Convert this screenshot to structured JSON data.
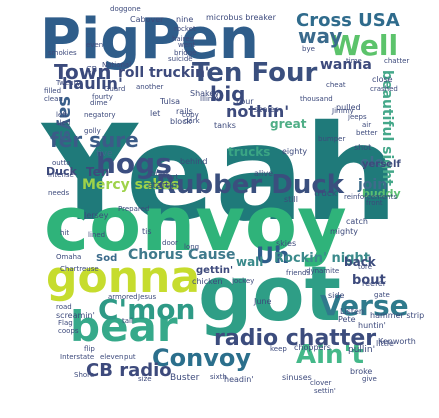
{
  "title": "",
  "words": [
    {
      "text": "Yeah",
      "color": "#1f7a7a",
      "vertical": false
    },
    {
      "text": "convoy",
      "color": "#2fb37a",
      "vertical": false
    },
    {
      "text": "got",
      "color": "#2e9e86",
      "vertical": false
    },
    {
      "text": "Pig",
      "color": "#2f5d8a",
      "vertical": false
    },
    {
      "text": "Pen",
      "color": "#2f5d8a",
      "vertical": false
    },
    {
      "text": "gonna",
      "color": "#c6dc2e",
      "vertical": false
    },
    {
      "text": "bear",
      "color": "#36a98a",
      "vertical": false
    },
    {
      "text": "Rubber Duck",
      "color": "#3a4f7e",
      "vertical": false
    },
    {
      "text": "Ten Four",
      "color": "#3a4f7e",
      "vertical": false
    },
    {
      "text": "Convoy",
      "color": "#2b6f8c",
      "vertical": false
    },
    {
      "text": "Ain't",
      "color": "#44b889",
      "vertical": false
    },
    {
      "text": "C'mon",
      "color": "#2e9a86",
      "vertical": false
    },
    {
      "text": "Verse",
      "color": "#2f7a8c",
      "vertical": false
    },
    {
      "text": "radio chatter",
      "color": "#3c4c7d",
      "vertical": false
    },
    {
      "text": "CB radio",
      "color": "#3d4a7c",
      "vertical": false
    },
    {
      "text": "Well",
      "color": "#5cc36b",
      "vertical": false
    },
    {
      "text": "hogs",
      "color": "#3b4e80",
      "vertical": false
    },
    {
      "text": "Cross USA",
      "color": "#2f6b8c",
      "vertical": false
    },
    {
      "text": "Town",
      "color": "#3b4a7c",
      "vertical": false
    },
    {
      "text": "fer sure",
      "color": "#3b5b87",
      "vertical": false
    },
    {
      "text": "says",
      "color": "#3a5f89",
      "vertical": true
    },
    {
      "text": "Uh",
      "color": "#2f5d8a",
      "vertical": false
    },
    {
      "text": "big",
      "color": "#3a4a7c",
      "vertical": false
    },
    {
      "text": "way",
      "color": "#3a6a8c",
      "vertical": false
    },
    {
      "text": "nothin'",
      "color": "#3d4a7c",
      "vertical": false
    },
    {
      "text": "roll truckin'",
      "color": "#3d4a7c",
      "vertical": false
    },
    {
      "text": "wanna",
      "color": "#3d4a7c",
      "vertical": false
    },
    {
      "text": "beautiful sight",
      "color": "#45a88a",
      "vertical": true
    },
    {
      "text": "Chorus Cause",
      "color": "#3f7a8c",
      "vertical": false
    },
    {
      "text": "Rockin' night",
      "color": "#3b8a8b",
      "vertical": false
    },
    {
      "text": "Mercy sakes",
      "color": "#9ed24a",
      "vertical": false
    },
    {
      "text": "trucks",
      "color": "#3aa584",
      "vertical": false
    },
    {
      "text": "join",
      "color": "#3d6c8b",
      "vertical": false
    },
    {
      "text": "wall",
      "color": "#3a8a8b",
      "vertical": false
    },
    {
      "text": "back",
      "color": "#3b4c7d",
      "vertical": false
    },
    {
      "text": "haulin'",
      "color": "#3b4a7c",
      "vertical": false
    },
    {
      "text": "Ten",
      "color": "#3d4a7c",
      "vertical": false
    },
    {
      "text": "five",
      "color": "#3d6a8b",
      "vertical": false
    },
    {
      "text": "gettin'",
      "color": "#3f4b7d",
      "vertical": false
    },
    {
      "text": "Sod",
      "color": "#3a6a8b",
      "vertical": false
    },
    {
      "text": "great",
      "color": "#4fae86",
      "vertical": false
    },
    {
      "text": "ole",
      "color": "#3d6c8b",
      "vertical": false
    },
    {
      "text": "bout",
      "color": "#3d4a7c",
      "vertical": false
    },
    {
      "text": "Duck",
      "color": "#3d4a7c",
      "vertical": false
    },
    {
      "text": "buddy",
      "color": "#5bbf72",
      "vertical": false
    },
    {
      "text": "yerself",
      "color": "#3d4a7c",
      "vertical": false
    },
    {
      "text": "Jersey",
      "color": "#3d4a7c",
      "vertical": false
    },
    {
      "text": "Shakey",
      "color": "#3d4a7c",
      "vertical": false
    },
    {
      "text": "behind",
      "color": "#3d4a7c",
      "vertical": false
    },
    {
      "text": "alive",
      "color": "#3d4a7c",
      "vertical": false
    },
    {
      "text": "still",
      "color": "#3d4a7c",
      "vertical": false
    },
    {
      "text": "bugs",
      "color": "#3d4a7c",
      "vertical": false
    },
    {
      "text": "smart",
      "color": "#3d4a7c",
      "vertical": false
    },
    {
      "text": "startin'",
      "color": "#3d4a7c",
      "vertical": false
    },
    {
      "text": "tanks",
      "color": "#3d4a7c",
      "vertical": false
    },
    {
      "text": "eighty",
      "color": "#3d4a7c",
      "vertical": false
    },
    {
      "text": "rails",
      "color": "#3d4a7c",
      "vertical": false
    },
    {
      "text": "let",
      "color": "#3d4a7c",
      "vertical": false
    },
    {
      "text": "block",
      "color": "#3d4a7c",
      "vertical": false
    },
    {
      "text": "pulled",
      "color": "#3d4a7c",
      "vertical": false
    },
    {
      "text": "Four",
      "color": "#3d4a7c",
      "vertical": false
    },
    {
      "text": "scales",
      "color": "#3d4a7c",
      "vertical": false
    },
    {
      "text": "Illinois",
      "color": "#3d4a7c",
      "vertical": false
    },
    {
      "text": "Tulsa",
      "color": "#3d4a7c",
      "vertical": false
    },
    {
      "text": "suicide",
      "color": "#3d4a7c",
      "vertical": false
    },
    {
      "text": "bridge",
      "color": "#3d4a7c",
      "vertical": false
    },
    {
      "text": "rocket",
      "color": "#3d4a7c",
      "vertical": false
    },
    {
      "text": "Cabover",
      "color": "#3d4a7c",
      "vertical": false
    },
    {
      "text": "nine",
      "color": "#3d4a7c",
      "vertical": false
    },
    {
      "text": "doggone",
      "color": "#3d4a7c",
      "vertical": false
    },
    {
      "text": "microbus breaker",
      "color": "#3d4a7c",
      "vertical": false
    },
    {
      "text": "haired",
      "color": "#3d4a7c",
      "vertical": false
    },
    {
      "text": "went",
      "color": "#3d4a7c",
      "vertical": false
    },
    {
      "text": "Kenworth",
      "color": "#3d4a7c",
      "vertical": false
    },
    {
      "text": "truck",
      "color": "#3d4a7c",
      "vertical": false
    },
    {
      "text": "catch",
      "color": "#3d4a7c",
      "vertical": false
    },
    {
      "text": "skies",
      "color": "#3d4a7c",
      "vertical": false
    },
    {
      "text": "friends",
      "color": "#3d4a7c",
      "vertical": false
    },
    {
      "text": "dynamite",
      "color": "#3d4a7c",
      "vertical": false
    },
    {
      "text": "reefer",
      "color": "#3d4a7c",
      "vertical": false
    },
    {
      "text": "side",
      "color": "#3d4a7c",
      "vertical": false
    },
    {
      "text": "Listen",
      "color": "#3d4a7c",
      "vertical": false
    },
    {
      "text": "June",
      "color": "#3d4a7c",
      "vertical": false
    },
    {
      "text": "hammer strip",
      "color": "#3d4a7c",
      "vertical": false
    },
    {
      "text": "Pete",
      "color": "#3d4a7c",
      "vertical": false
    },
    {
      "text": "huntin'",
      "color": "#3d4a7c",
      "vertical": false
    },
    {
      "text": "little",
      "color": "#3d4a7c",
      "vertical": false
    },
    {
      "text": "pullin'",
      "color": "#3d4a7c",
      "vertical": false
    },
    {
      "text": "choppers",
      "color": "#3d4a7c",
      "vertical": false
    },
    {
      "text": "keep",
      "color": "#3d4a7c",
      "vertical": false
    },
    {
      "text": "broke",
      "color": "#3d4a7c",
      "vertical": false
    },
    {
      "text": "sinuses",
      "color": "#3d4a7c",
      "vertical": false
    },
    {
      "text": "headin'",
      "color": "#3d4a7c",
      "vertical": false
    },
    {
      "text": "sixth",
      "color": "#3d4a7c",
      "vertical": false
    },
    {
      "text": "Buster",
      "color": "#3d4a7c",
      "vertical": false
    },
    {
      "text": "size",
      "color": "#3d4a7c",
      "vertical": false
    },
    {
      "text": "eleven",
      "color": "#3d4a7c",
      "vertical": false
    },
    {
      "text": "put",
      "color": "#3d4a7c",
      "vertical": false
    },
    {
      "text": "flip",
      "color": "#3d4a7c",
      "vertical": false
    },
    {
      "text": "Shore",
      "color": "#3d4a7c",
      "vertical": false
    },
    {
      "text": "Interstate",
      "color": "#3d4a7c",
      "vertical": false
    },
    {
      "text": "Flag",
      "color": "#3d4a7c",
      "vertical": false
    },
    {
      "text": "coops",
      "color": "#3d4a7c",
      "vertical": false
    },
    {
      "text": "screamin'",
      "color": "#3d4a7c",
      "vertical": false
    },
    {
      "text": "road",
      "color": "#3d4a7c",
      "vertical": false
    },
    {
      "text": "Omaha",
      "color": "#3d4a7c",
      "vertical": false
    },
    {
      "text": "Chartreuse",
      "color": "#3d4a7c",
      "vertical": false
    },
    {
      "text": "armored",
      "color": "#3d4a7c",
      "vertical": false
    },
    {
      "text": "Jesus",
      "color": "#3d4a7c",
      "vertical": false
    },
    {
      "text": "chicken",
      "color": "#3d4a7c",
      "vertical": false
    },
    {
      "text": "jockey",
      "color": "#3d4a7c",
      "vertical": false
    },
    {
      "text": "long",
      "color": "#3d4a7c",
      "vertical": false
    },
    {
      "text": "door",
      "color": "#3d4a7c",
      "vertical": false
    },
    {
      "text": "lined",
      "color": "#3d4a7c",
      "vertical": false
    },
    {
      "text": "tis",
      "color": "#3d4a7c",
      "vertical": false
    },
    {
      "text": "needs",
      "color": "#3d4a7c",
      "vertical": false
    },
    {
      "text": "intense",
      "color": "#3d4a7c",
      "vertical": false
    },
    {
      "text": "outta",
      "color": "#3d4a7c",
      "vertical": false
    },
    {
      "text": "left",
      "color": "#3d4a7c",
      "vertical": false
    },
    {
      "text": "sled",
      "color": "#3d4a7c",
      "vertical": false
    },
    {
      "text": "golly",
      "color": "#3d4a7c",
      "vertical": false
    },
    {
      "text": "negatory",
      "color": "#3d4a7c",
      "vertical": false
    },
    {
      "text": "Twenty",
      "color": "#3d4a7c",
      "vertical": false
    },
    {
      "text": "filled",
      "color": "#3d4a7c",
      "vertical": false
    },
    {
      "text": "clean",
      "color": "#3d4a7c",
      "vertical": false
    },
    {
      "text": "dime",
      "color": "#3d4a7c",
      "vertical": false
    },
    {
      "text": "fourty",
      "color": "#3d4a7c",
      "vertical": false
    },
    {
      "text": "Guard",
      "color": "#3d4a7c",
      "vertical": false
    },
    {
      "text": "National",
      "color": "#3d4a7c",
      "vertical": false
    },
    {
      "text": "another",
      "color": "#3d4a7c",
      "vertical": false
    },
    {
      "text": "copy",
      "color": "#3d4a7c",
      "vertical": false
    },
    {
      "text": "dark",
      "color": "#3d4a7c",
      "vertical": false
    },
    {
      "text": "even",
      "color": "#3d4a7c",
      "vertical": false
    },
    {
      "text": "smokies",
      "color": "#3d4a7c",
      "vertical": false
    },
    {
      "text": "cheat",
      "color": "#3d4a7c",
      "vertical": false
    },
    {
      "text": "bye",
      "color": "#3d4a7c",
      "vertical": false
    },
    {
      "text": "time",
      "color": "#3d4a7c",
      "vertical": false
    },
    {
      "text": "chatter",
      "color": "#3d4a7c",
      "vertical": false
    },
    {
      "text": "close",
      "color": "#3d4a7c",
      "vertical": false
    },
    {
      "text": "crashed",
      "color": "#3d4a7c",
      "vertical": false
    },
    {
      "text": "thousand",
      "color": "#3d4a7c",
      "vertical": false
    },
    {
      "text": "air",
      "color": "#3d4a7c",
      "vertical": false
    },
    {
      "text": "better",
      "color": "#3d4a7c",
      "vertical": false
    },
    {
      "text": "shot",
      "color": "#3d4a7c",
      "vertical": false
    },
    {
      "text": "reinforcements",
      "color": "#3d4a7c",
      "vertical": false
    },
    {
      "text": "front",
      "color": "#3d4a7c",
      "vertical": false
    },
    {
      "text": "mighty",
      "color": "#3d4a7c",
      "vertical": false
    },
    {
      "text": "tore",
      "color": "#3d4a7c",
      "vertical": false
    },
    {
      "text": "gate",
      "color": "#3d4a7c",
      "vertical": false
    },
    {
      "text": "clover",
      "color": "#3d4a7c",
      "vertical": false
    },
    {
      "text": "settin'",
      "color": "#3d4a7c",
      "vertical": false
    },
    {
      "text": "give",
      "color": "#3d4a7c",
      "vertical": false
    },
    {
      "text": "Prepared",
      "color": "#3d4a7c",
      "vertical": false
    },
    {
      "text": "tail",
      "color": "#3d4a7c",
      "vertical": false
    },
    {
      "text": "CB",
      "color": "#3d4a7c",
      "vertical": false
    },
    {
      "text": "hit",
      "color": "#3d4a7c",
      "vertical": false
    },
    {
      "text": "Jimmy",
      "color": "#3d4a7c",
      "vertical": false
    },
    {
      "text": "jeeps",
      "color": "#3d4a7c",
      "vertical": false
    },
    {
      "text": "bumper",
      "color": "#3d4a7c",
      "vertical": false
    }
  ]
}
